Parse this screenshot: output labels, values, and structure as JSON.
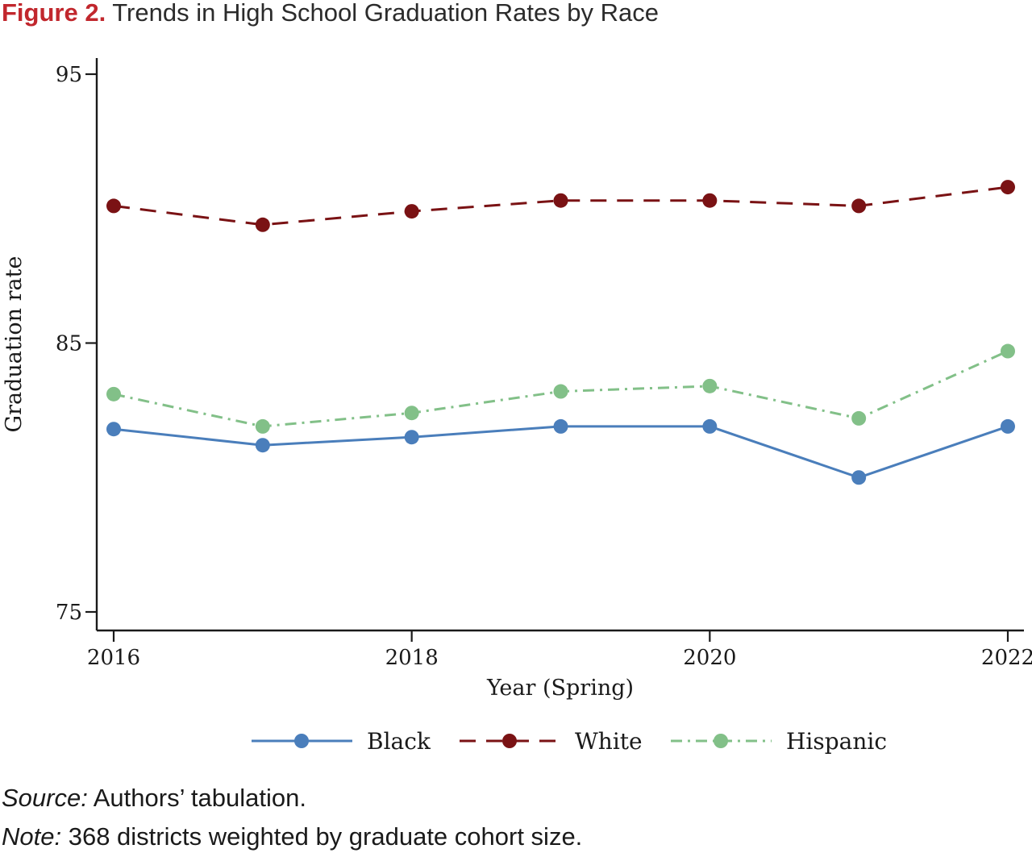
{
  "figure": {
    "label": "Figure 2.",
    "title": "Trends in High School Graduation Rates by Race"
  },
  "chart_data": {
    "type": "line",
    "title": "Trends in High School Graduation Rates by Race",
    "xlabel": "Year (Spring)",
    "ylabel": "Graduation rate",
    "x": [
      2016,
      2017,
      2018,
      2019,
      2020,
      2021,
      2022
    ],
    "xlim": [
      2016,
      2022
    ],
    "ylim": [
      75,
      95
    ],
    "xticks": [
      2016,
      2018,
      2020,
      2022
    ],
    "yticks": [
      75,
      85,
      95
    ],
    "grid": false,
    "legend_position": "bottom",
    "series": [
      {
        "name": "Black",
        "color": "#4a7ebb",
        "line_style": "solid",
        "values": [
          81.8,
          81.2,
          81.5,
          81.9,
          81.9,
          80.0,
          81.9
        ]
      },
      {
        "name": "White",
        "color": "#7a1214",
        "line_style": "dashed",
        "values": [
          90.1,
          89.4,
          89.9,
          90.3,
          90.3,
          90.1,
          90.8
        ]
      },
      {
        "name": "Hispanic",
        "color": "#82c088",
        "line_style": "dash-dot",
        "values": [
          83.1,
          81.9,
          82.4,
          83.2,
          83.4,
          82.2,
          84.7
        ]
      }
    ]
  },
  "notes": {
    "source_label": "Source:",
    "source_text": " Authors’ tabulation.",
    "note_label": "Note:",
    "note_text": " 368 districts weighted by graduate cohort size."
  }
}
